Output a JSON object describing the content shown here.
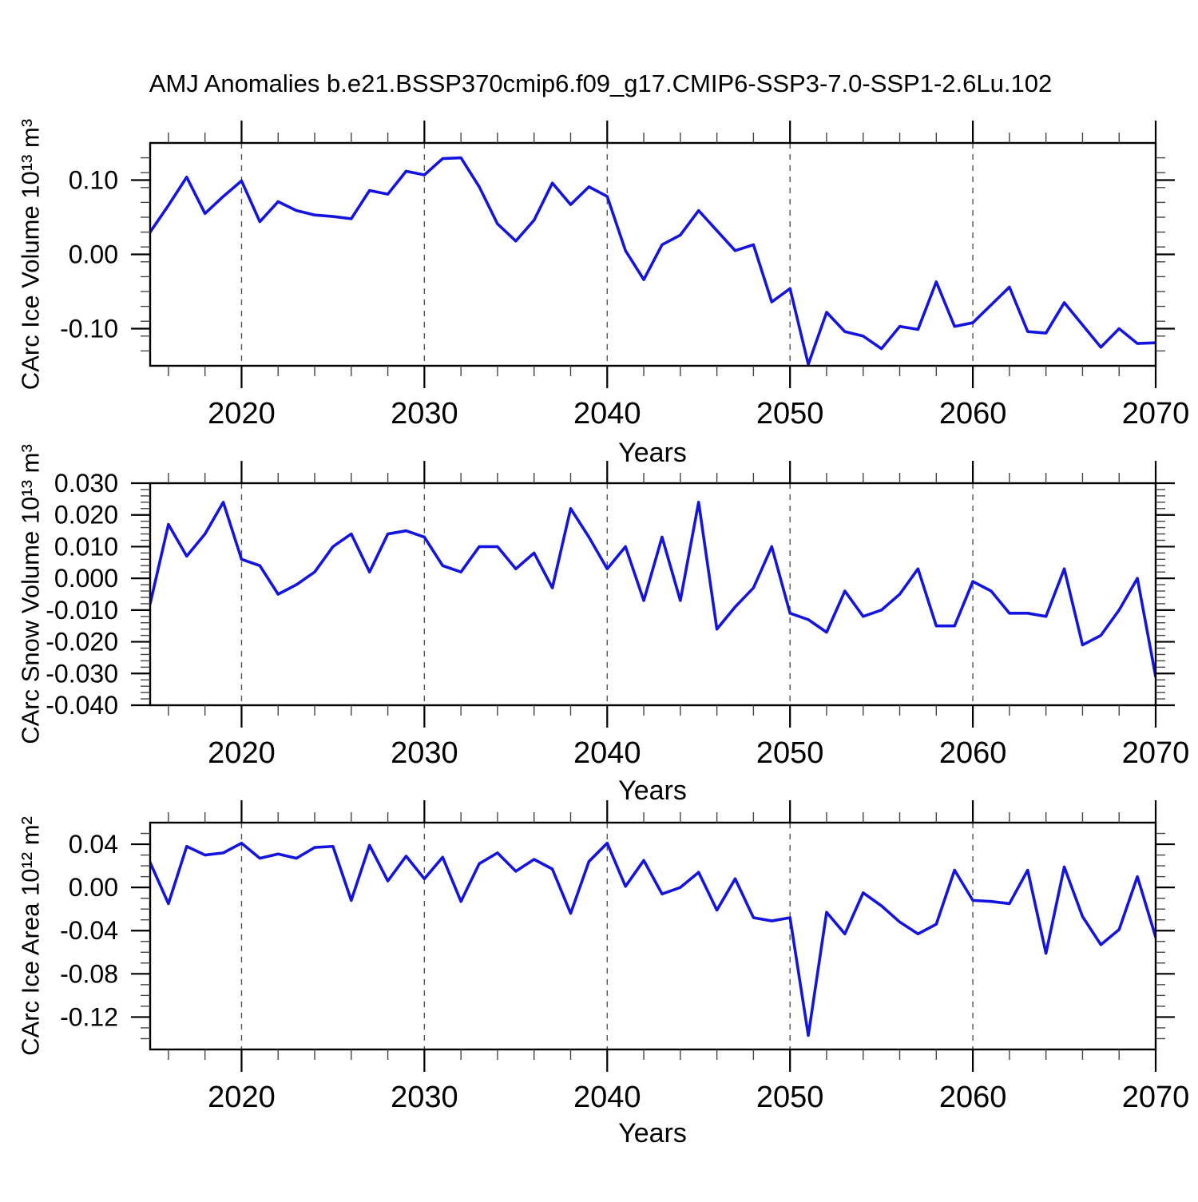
{
  "title": "AMJ Anomalies b.e21.BSSP370cmip6.f09_g17.CMIP6-SSP3-7.0-SSP1-2.6Lu.102",
  "line_color": "#1414e0",
  "background_color": "#ffffff",
  "chart_data": [
    {
      "type": "line",
      "name": "CArc Ice Volume anomalies",
      "ylabel": "CArc Ice Volume 10¹³ m³",
      "xlabel": "Years",
      "legend": "none",
      "grid": "dashed vertical gridlines at decades",
      "x": [
        2015,
        2016,
        2017,
        2018,
        2019,
        2020,
        2021,
        2022,
        2023,
        2024,
        2025,
        2026,
        2027,
        2028,
        2029,
        2030,
        2031,
        2032,
        2033,
        2034,
        2035,
        2036,
        2037,
        2038,
        2039,
        2040,
        2041,
        2042,
        2043,
        2044,
        2045,
        2046,
        2047,
        2048,
        2049,
        2050,
        2051,
        2052,
        2053,
        2054,
        2055,
        2056,
        2057,
        2058,
        2059,
        2060,
        2061,
        2062,
        2063,
        2064,
        2065,
        2066,
        2067,
        2068,
        2069,
        2070
      ],
      "values": [
        0.03,
        0.066,
        0.104,
        0.055,
        0.078,
        0.099,
        0.044,
        0.071,
        0.059,
        0.053,
        0.051,
        0.048,
        0.086,
        0.081,
        0.112,
        0.107,
        0.129,
        0.13,
        0.091,
        0.041,
        0.018,
        0.046,
        0.096,
        0.067,
        0.091,
        0.078,
        0.005,
        -0.034,
        0.013,
        0.026,
        0.059,
        0.032,
        0.005,
        0.013,
        -0.064,
        -0.046,
        -0.148,
        -0.078,
        -0.104,
        -0.11,
        -0.127,
        -0.097,
        -0.101,
        -0.037,
        -0.097,
        -0.092,
        -0.068,
        -0.044,
        -0.104,
        -0.106,
        -0.065,
        -0.095,
        -0.125,
        -0.1,
        -0.12,
        -0.119
      ],
      "xlim": [
        2015,
        2070
      ],
      "ylim": [
        -0.15,
        0.15
      ],
      "xtick_values": [
        2020,
        2030,
        2040,
        2050,
        2060,
        2070
      ],
      "xtick_labels": [
        "2020",
        "2030",
        "2040",
        "2050",
        "2060",
        "2070"
      ],
      "xtick_minor_step": 2,
      "ytick_values": [
        0.1,
        0.0,
        -0.1
      ],
      "ytick_labels": [
        "0.10",
        "0.00",
        "-0.10"
      ],
      "ytick_minor_step": 0.02,
      "grid_years": [
        2020,
        2030,
        2040,
        2050,
        2060
      ]
    },
    {
      "type": "line",
      "name": "CArc Snow Volume anomalies",
      "ylabel": "CArc Snow Volume 10¹³ m³",
      "xlabel": "Years",
      "legend": "none",
      "grid": "dashed vertical gridlines at decades",
      "x": [
        2015,
        2016,
        2017,
        2018,
        2019,
        2020,
        2021,
        2022,
        2023,
        2024,
        2025,
        2026,
        2027,
        2028,
        2029,
        2030,
        2031,
        2032,
        2033,
        2034,
        2035,
        2036,
        2037,
        2038,
        2039,
        2040,
        2041,
        2042,
        2043,
        2044,
        2045,
        2046,
        2047,
        2048,
        2049,
        2050,
        2051,
        2052,
        2053,
        2054,
        2055,
        2056,
        2057,
        2058,
        2059,
        2060,
        2061,
        2062,
        2063,
        2064,
        2065,
        2066,
        2067,
        2068,
        2069,
        2070
      ],
      "values": [
        -0.008,
        0.017,
        0.007,
        0.014,
        0.024,
        0.006,
        0.004,
        -0.005,
        -0.002,
        0.002,
        0.01,
        0.014,
        0.002,
        0.014,
        0.015,
        0.013,
        0.004,
        0.002,
        0.01,
        0.01,
        0.003,
        0.008,
        -0.003,
        0.022,
        0.013,
        0.003,
        0.01,
        -0.007,
        0.013,
        -0.007,
        0.024,
        -0.016,
        -0.009,
        -0.003,
        0.01,
        -0.011,
        -0.013,
        -0.017,
        -0.004,
        -0.012,
        -0.01,
        -0.005,
        0.003,
        -0.015,
        -0.015,
        -0.001,
        -0.004,
        -0.011,
        -0.011,
        -0.012,
        0.003,
        -0.021,
        -0.018,
        -0.01,
        0.0,
        -0.031
      ],
      "xlim": [
        2015,
        2070
      ],
      "ylim": [
        -0.04,
        0.03
      ],
      "xtick_values": [
        2020,
        2030,
        2040,
        2050,
        2060,
        2070
      ],
      "xtick_labels": [
        "2020",
        "2030",
        "2040",
        "2050",
        "2060",
        "2070"
      ],
      "xtick_minor_step": 2,
      "ytick_values": [
        0.03,
        0.02,
        0.01,
        0.0,
        -0.01,
        -0.02,
        -0.03,
        -0.04
      ],
      "ytick_labels": [
        "0.030",
        "0.020",
        "0.010",
        "0.000",
        "-0.010",
        "-0.020",
        "-0.030",
        "-0.040"
      ],
      "ytick_minor_step": 0.002,
      "grid_years": [
        2020,
        2030,
        2040,
        2050,
        2060
      ]
    },
    {
      "type": "line",
      "name": "CArc Ice Area anomalies",
      "ylabel": "CArc Ice Area 10¹² m²",
      "xlabel": "Years",
      "legend": "none",
      "grid": "dashed vertical gridlines at decades",
      "x": [
        2015,
        2016,
        2017,
        2018,
        2019,
        2020,
        2021,
        2022,
        2023,
        2024,
        2025,
        2026,
        2027,
        2028,
        2029,
        2030,
        2031,
        2032,
        2033,
        2034,
        2035,
        2036,
        2037,
        2038,
        2039,
        2040,
        2041,
        2042,
        2043,
        2044,
        2045,
        2046,
        2047,
        2048,
        2049,
        2050,
        2051,
        2052,
        2053,
        2054,
        2055,
        2056,
        2057,
        2058,
        2059,
        2060,
        2061,
        2062,
        2063,
        2064,
        2065,
        2066,
        2067,
        2068,
        2069,
        2070
      ],
      "values": [
        0.023,
        -0.015,
        0.038,
        0.03,
        0.032,
        0.041,
        0.027,
        0.031,
        0.027,
        0.037,
        0.038,
        -0.012,
        0.039,
        0.006,
        0.029,
        0.008,
        0.028,
        -0.013,
        0.022,
        0.032,
        0.015,
        0.026,
        0.017,
        -0.024,
        0.024,
        0.041,
        0.001,
        0.025,
        -0.006,
        0.0,
        0.014,
        -0.021,
        0.008,
        -0.028,
        -0.031,
        -0.028,
        -0.137,
        -0.023,
        -0.043,
        -0.005,
        -0.017,
        -0.032,
        -0.043,
        -0.034,
        0.016,
        -0.012,
        -0.013,
        -0.015,
        0.016,
        -0.061,
        0.019,
        -0.027,
        -0.053,
        -0.039,
        0.01,
        -0.046
      ],
      "xlim": [
        2015,
        2070
      ],
      "ylim": [
        -0.15,
        0.06
      ],
      "xtick_values": [
        2020,
        2030,
        2040,
        2050,
        2060,
        2070
      ],
      "xtick_labels": [
        "2020",
        "2030",
        "2040",
        "2050",
        "2060",
        "2070"
      ],
      "xtick_minor_step": 2,
      "ytick_values": [
        0.04,
        0.0,
        -0.04,
        -0.08,
        -0.12
      ],
      "ytick_labels": [
        "0.04",
        "0.00",
        "-0.04",
        "-0.08",
        "-0.12"
      ],
      "ytick_minor_step": 0.01,
      "grid_years": [
        2020,
        2030,
        2040,
        2050,
        2060
      ]
    }
  ]
}
